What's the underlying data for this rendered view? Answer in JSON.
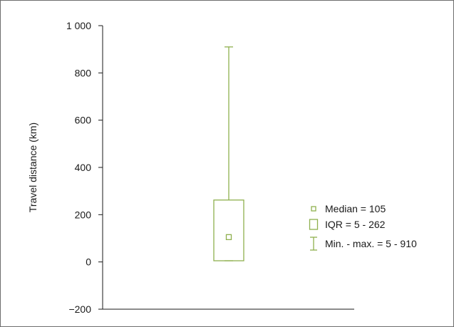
{
  "chart_data": {
    "type": "box",
    "ylabel": "Travel distance (km)",
    "ylim": [
      -200,
      1000
    ],
    "yticks": [
      -200,
      0,
      200,
      400,
      600,
      800,
      1000
    ],
    "ytick_labels": [
      "−200",
      "0",
      "200",
      "400",
      "600",
      "800",
      "1 000"
    ],
    "box": {
      "min": 5,
      "q1": 5,
      "median": 105,
      "q3": 262,
      "max": 910
    },
    "legend": [
      {
        "symbol": "median",
        "label": "Median = 105"
      },
      {
        "symbol": "iqr",
        "label": "IQR = 5 - 262"
      },
      {
        "symbol": "range",
        "label": "Min. - max. = 5 - 910"
      }
    ],
    "legend_position": "right",
    "colors": {
      "box": "#8fb04f",
      "axis": "#1a1a1a"
    }
  }
}
